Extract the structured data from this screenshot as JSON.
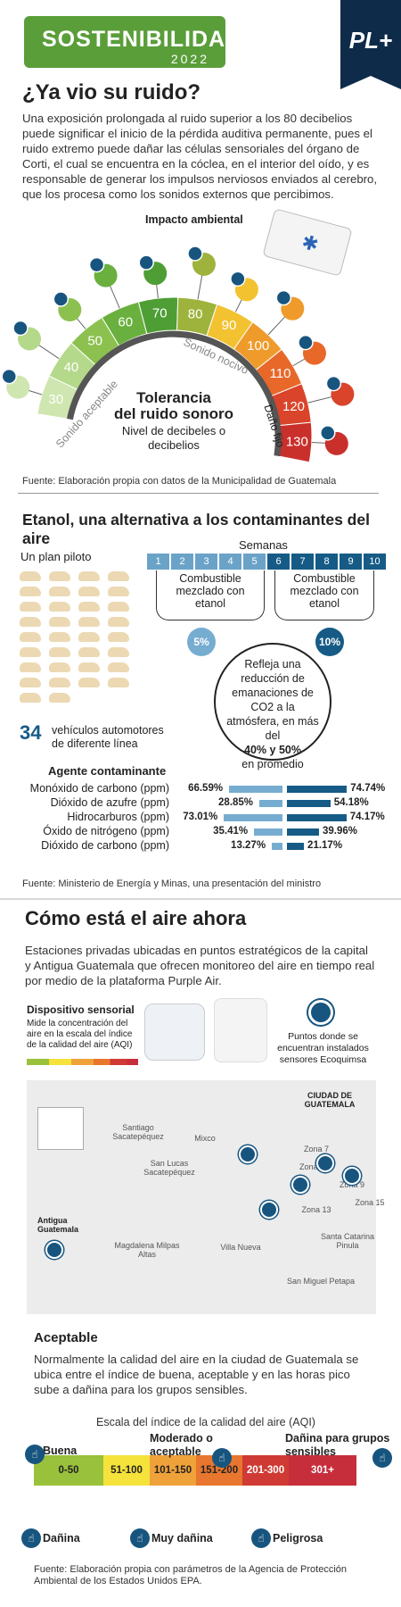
{
  "brand": {
    "title": "SOSTENIBILIDAD",
    "year": "2022",
    "publisher": "PL+"
  },
  "noise": {
    "title": "¿Ya vio su ruido?",
    "intro": "Una exposición prolongada al ruido superior a los 80 decibelios puede significar el inicio de la pérdida auditiva permanente, pues el ruido extremo puede dañar las células sensoriales del órgano de Corti, el cual se encuentra en la cóclea, en el interior del oído, y es responsable de generar los impulsos nerviosos enviados al cerebro, que los procesa como los sonidos externos que percibimos.",
    "impact_label": "Impacto ambiental",
    "levels": [
      "30",
      "40",
      "50",
      "60",
      "70",
      "80",
      "90",
      "100",
      "110",
      "120",
      "130"
    ],
    "zone_ok": "Sonido aceptable",
    "zone_harmful": "Sonido nocivo",
    "zone_damage": "Daño fijo",
    "center_title1": "Tolerancia",
    "center_title2": "del ruido sonoro",
    "center_sub1": "Nivel de decibeles o",
    "center_sub2": "decibelios",
    "source": "Fuente: Elaboración propia con datos de la Municipalidad de Guatemala"
  },
  "ethanol": {
    "title": "Etanol, una alternativa a los contaminantes del aire",
    "pilot": "Un plan piloto",
    "weeks_label": "Semanas",
    "weeks": [
      "1",
      "2",
      "3",
      "4",
      "5",
      "6",
      "7",
      "8",
      "9",
      "10"
    ],
    "fuel_a": "Combustible mezclado con etanol",
    "fuel_b": "Combustible mezclado con etanol",
    "pct_a": "5%",
    "pct_b": "10%",
    "reduction_1": "Refleja una reducción de emanaciones de CO2 a la atmósfera, en más del",
    "reduction_2": "40% y 50%",
    "reduction_3": "en promedio",
    "vehicles_count": "34",
    "vehicles_label": "vehículos automotores de diferente línea",
    "agent_label": "Agente contaminante",
    "source": "Fuente: Ministerio de Energía y Minas, una presentación del ministro"
  },
  "chart_data": {
    "type": "bar",
    "categories": [
      "Monóxido de carbono (ppm)",
      "Dióxido de azufre (ppm)",
      "Hidrocarburos (ppm)",
      "Óxido de nitrógeno (ppm)",
      "Dióxido de carbono (ppm)"
    ],
    "series": [
      {
        "name": "5%",
        "values": [
          66.59,
          28.85,
          73.01,
          35.41,
          13.27
        ]
      },
      {
        "name": "10%",
        "values": [
          74.74,
          54.18,
          74.17,
          39.96,
          21.17
        ]
      }
    ],
    "labels_a": [
      "66.59%",
      "28.85%",
      "73.01%",
      "35.41%",
      "13.27%"
    ],
    "labels_b": [
      "74.74%",
      "54.18%",
      "74.17%",
      "39.96%",
      "21.17%"
    ],
    "colors": [
      "#77acd1",
      "#165b86"
    ]
  },
  "air": {
    "title": "Cómo está el aire ahora",
    "intro": "Estaciones privadas ubicadas en puntos estratégicos de la capital y Antigua Guatemala que ofrecen monitoreo del aire en tiempo real por medio de la plataforma Purple Air.",
    "device_title": "Dispositivo sensorial",
    "device_text": "Mide la concentración del aire en la escala del índice de la calidad del aire (AQI)",
    "points_text": "Puntos donde se encuentran instalados sensores Ecoquimsa",
    "map_places": [
      "Santiago Sacatepéquez",
      "Mixco",
      "San Lucas Sacatepéquez",
      "Zona 7",
      "Zona 8",
      "Zona 9",
      "Zona 15",
      "Zona 13",
      "Antigua Guatemala",
      "Magdalena Milpas Altas",
      "Villa Nueva",
      "Santa Catarina Pinula",
      "San Miguel Petapa"
    ],
    "city": "CIUDAD DE GUATEMALA"
  },
  "aqi": {
    "status": "Aceptable",
    "text": "Normalmente la calidad del aire en la ciudad de Guatemala se ubica entre el índice de buena, aceptable y en las horas pico sube a dañina para los grupos sensibles.",
    "scale_title": "Escala del índice de la calidad del aire (AQI)",
    "ranges": [
      "0-50",
      "51-100",
      "101-150",
      "151-200",
      "201-300",
      "301+"
    ],
    "colors": [
      "#9ac13b",
      "#f5e23a",
      "#f0a23a",
      "#e8762e",
      "#cf3a34",
      "#c72e3b"
    ],
    "top_labels": [
      "Buena",
      "Moderado o aceptable",
      "Dañina para grupos sensibles"
    ],
    "bottom_labels": [
      "Dañina",
      "Muy dañina",
      "Peligrosa"
    ],
    "source": "Fuente: Elaboración propia con parámetros de la Agencia de Protección Ambiental de los Estados Unidos EPA."
  }
}
